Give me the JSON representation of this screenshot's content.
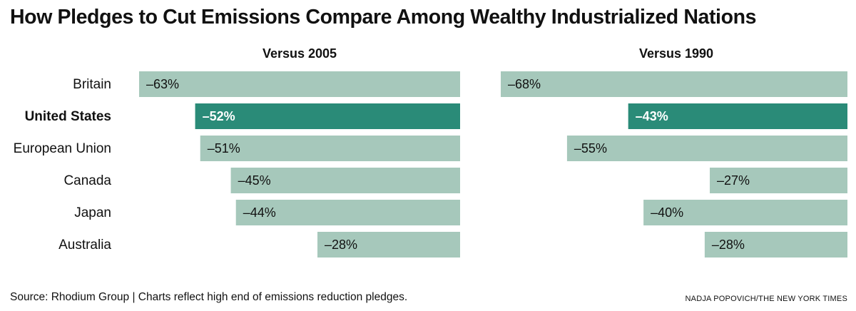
{
  "title": "How Pledges to Cut Emissions Compare Among Wealthy Industrialized Nations",
  "source": "Source: Rhodium Group | Charts reflect high end of emissions reduction pledges.",
  "credit": "NADJA POPOVICH/THE NEW YORK TIMES",
  "colors": {
    "highlight": "#2a8b78",
    "bar": "#a6c8bb",
    "text": "#111111"
  },
  "chart_data": {
    "type": "bar",
    "orientation": "horizontal",
    "categories": [
      "Britain",
      "United States",
      "European Union",
      "Canada",
      "Japan",
      "Australia"
    ],
    "highlight_category": "United States",
    "panels": [
      {
        "title": "Versus 2005",
        "values": [
          -63,
          -52,
          -51,
          -45,
          -44,
          -28
        ],
        "labels": [
          "–63%",
          "–52%",
          "–51%",
          "–45%",
          "–44%",
          "–28%"
        ],
        "xlim": [
          -63,
          0
        ]
      },
      {
        "title": "Versus 1990",
        "values": [
          -68,
          -43,
          -55,
          -27,
          -40,
          -28
        ],
        "labels": [
          "–68%",
          "–43%",
          "–55%",
          "–27%",
          "–40%",
          "–28%"
        ],
        "xlim": [
          -68,
          0
        ]
      }
    ],
    "grid": false,
    "legend": "none"
  }
}
